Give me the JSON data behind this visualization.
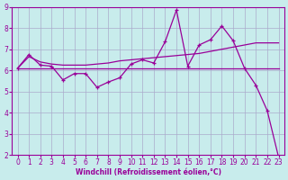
{
  "background_color": "#c8ecec",
  "grid_color": "#aaaacc",
  "line_color": "#990099",
  "xlabel": "Windchill (Refroidissement éolien,°C)",
  "xlim": [
    -0.5,
    23.5
  ],
  "ylim": [
    2,
    9
  ],
  "xticks": [
    0,
    1,
    2,
    3,
    4,
    5,
    6,
    7,
    8,
    9,
    10,
    11,
    12,
    13,
    14,
    15,
    16,
    17,
    18,
    19,
    20,
    21,
    22,
    23
  ],
  "yticks": [
    2,
    3,
    4,
    5,
    6,
    7,
    8,
    9
  ],
  "line1_x": [
    0,
    1,
    2,
    3,
    4,
    5,
    6,
    7,
    8,
    9,
    10,
    11,
    12,
    13,
    14,
    15,
    16,
    17,
    18,
    19,
    20,
    21,
    22,
    23
  ],
  "line1_y": [
    6.1,
    6.75,
    6.25,
    6.2,
    5.55,
    5.85,
    5.85,
    5.2,
    5.45,
    5.65,
    6.3,
    6.5,
    6.35,
    7.35,
    8.85,
    6.2,
    7.2,
    7.45,
    8.1,
    7.4,
    6.1,
    5.3,
    4.1,
    1.9
  ],
  "line2_x": [
    0,
    20,
    21,
    22,
    23
  ],
  "line2_y": [
    6.1,
    6.1,
    6.1,
    6.1,
    6.1
  ],
  "line3_x": [
    0,
    1,
    2,
    3,
    4,
    5,
    6,
    7,
    8,
    9,
    10,
    11,
    12,
    13,
    14,
    15,
    16,
    17,
    18,
    19,
    20,
    21,
    22,
    23
  ],
  "line3_y": [
    6.1,
    6.65,
    6.4,
    6.3,
    6.25,
    6.25,
    6.25,
    6.3,
    6.35,
    6.45,
    6.5,
    6.55,
    6.6,
    6.65,
    6.7,
    6.75,
    6.8,
    6.9,
    7.0,
    7.1,
    7.2,
    7.3,
    7.3,
    7.3
  ],
  "label_fontsize": 5.5,
  "tick_fontsize": 5.5
}
